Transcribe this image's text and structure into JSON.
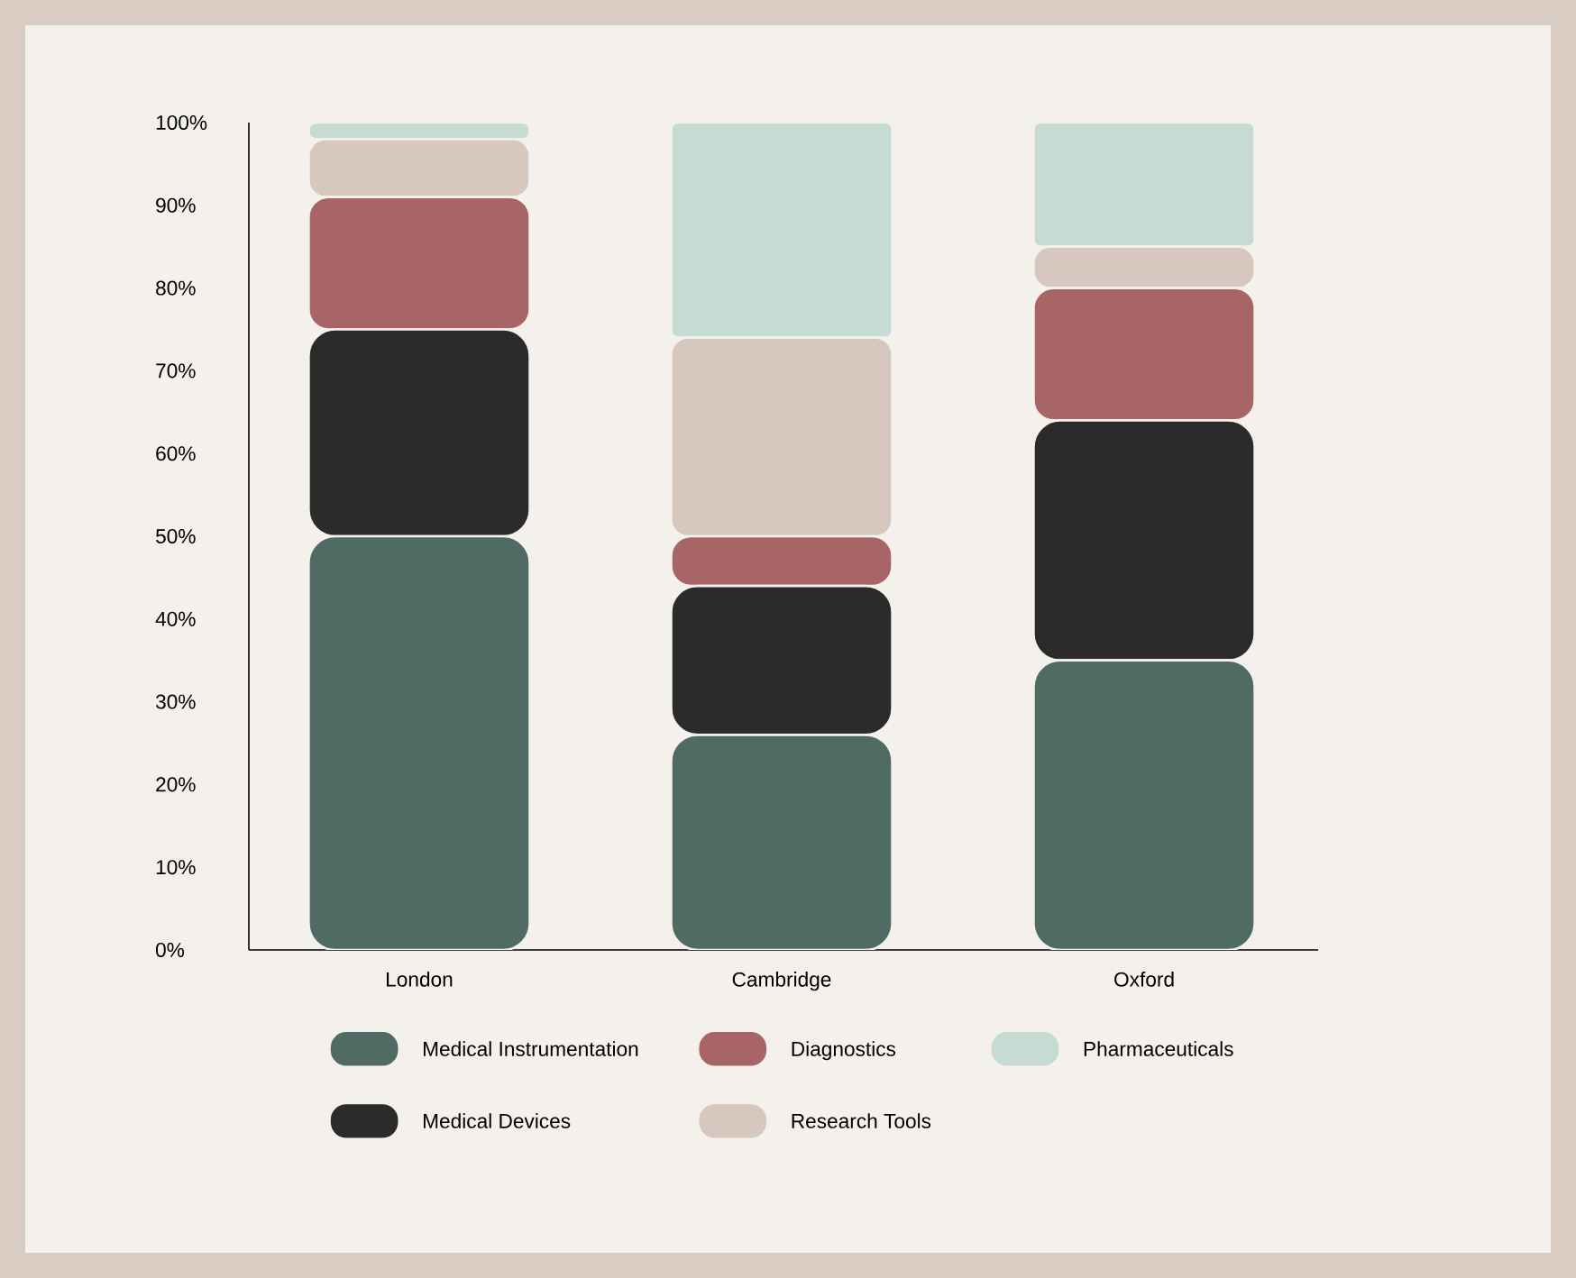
{
  "chart_data": {
    "type": "bar",
    "stacked": true,
    "categories": [
      "London",
      "Cambridge",
      "Oxford"
    ],
    "series": [
      {
        "name": "Medical Instrumentation",
        "color": "#4f6b64",
        "values": [
          50,
          26,
          35
        ]
      },
      {
        "name": "Medical Devices",
        "color": "#2b2b2b",
        "values": [
          25,
          18,
          29
        ]
      },
      {
        "name": "Diagnostics",
        "color": "#a86566",
        "values": [
          16,
          6,
          16
        ]
      },
      {
        "name": "Research Tools",
        "color": "#d6c8be",
        "values": [
          7,
          24,
          5
        ]
      },
      {
        "name": "Pharmaceuticals",
        "color": "#c5dbd3",
        "values": [
          2,
          26,
          15
        ]
      }
    ],
    "ylim": [
      0,
      100
    ],
    "yticks": [
      {
        "value": 0,
        "label": "0%"
      },
      {
        "value": 10,
        "label": "10%"
      },
      {
        "value": 20,
        "label": "20%"
      },
      {
        "value": 30,
        "label": "30%"
      },
      {
        "value": 40,
        "label": "40%"
      },
      {
        "value": 50,
        "label": "50%"
      },
      {
        "value": 60,
        "label": "60%"
      },
      {
        "value": 70,
        "label": "70%"
      },
      {
        "value": 80,
        "label": "80%"
      },
      {
        "value": 90,
        "label": "90%"
      },
      {
        "value": 100,
        "label": "100%"
      }
    ],
    "legend": "bottom"
  }
}
